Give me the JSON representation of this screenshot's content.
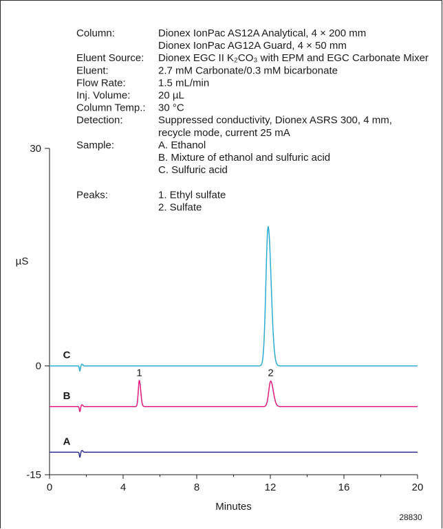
{
  "conditions": [
    {
      "label": "Column:",
      "lines": [
        "Dionex IonPac AS12A Analytical, 4 × 200 mm",
        "Dionex IonPac AG12A Guard, 4 × 50 mm"
      ]
    },
    {
      "label": "Eluent Source:",
      "lines": [
        "Dionex EGC II K₂CO₃ with EPM and EGC Carbonate Mixer"
      ]
    },
    {
      "label": "Eluent:",
      "lines": [
        "2.7 mM Carbonate/0.3 mM bicarbonate"
      ]
    },
    {
      "label": "Flow Rate:",
      "lines": [
        "1.5 mL/min"
      ]
    },
    {
      "label": "Inj. Volume:",
      "lines": [
        "20 µL"
      ]
    },
    {
      "label": "Column Temp.:",
      "lines": [
        "30 °C"
      ]
    },
    {
      "label": "Detection:",
      "lines": [
        "Suppressed conductivity, Dionex ASRS 300, 4 mm,",
        "recycle mode, current 25 mA"
      ]
    },
    {
      "label": "Sample:",
      "lines": [
        "A. Ethanol",
        "B. Mixture of ethanol and sulfuric acid",
        "C. Sulfuric acid"
      ]
    },
    {
      "label": "Peaks:",
      "lines": [
        "1. Ethyl sulfate",
        "2. Sulfate"
      ]
    }
  ],
  "figure_id": "28830",
  "chart_data": {
    "type": "line",
    "xlabel": "Minutes",
    "ylabel": "µS",
    "xlim": [
      0,
      20
    ],
    "ylim": [
      -15,
      30
    ],
    "x_ticks": [
      0,
      4,
      8,
      12,
      16,
      20
    ],
    "y_ticks": [
      -15,
      0,
      30
    ],
    "series": [
      {
        "name": "C",
        "color": "#29abd4",
        "baseline": 0,
        "dip_x": 1.65,
        "dip_depth": 0.7,
        "peaks": [
          {
            "x": 11.88,
            "height": 19.2,
            "width": 0.17
          }
        ]
      },
      {
        "name": "B",
        "color": "#e0197d",
        "baseline": -5.6,
        "dip_x": 1.65,
        "dip_depth": 0.7,
        "peaks": [
          {
            "x": 4.88,
            "height": 3.6,
            "width": 0.08
          },
          {
            "x": 12.02,
            "height": 3.5,
            "width": 0.15
          }
        ]
      },
      {
        "name": "A",
        "color": "#2e3192",
        "baseline": -11.9,
        "dip_x": 1.65,
        "dip_depth": 0.7,
        "peaks": []
      }
    ],
    "peak_labels": [
      {
        "text": "1",
        "x": 4.88,
        "y": -1.4
      },
      {
        "text": "2",
        "x": 12.02,
        "y": -1.4
      }
    ]
  }
}
